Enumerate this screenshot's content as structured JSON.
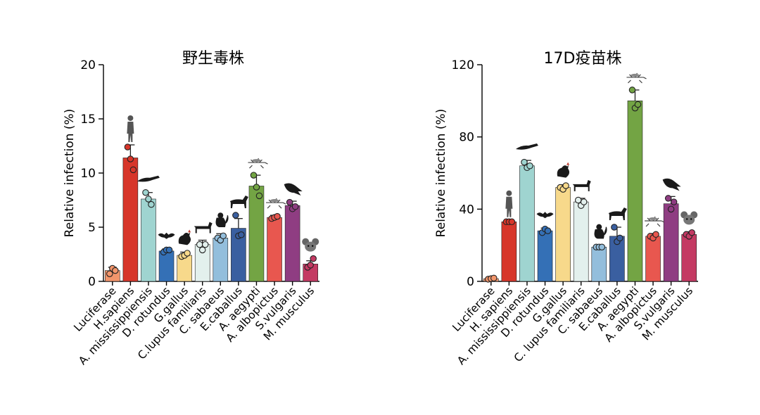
{
  "chart_data": [
    {
      "type": "bar",
      "title": "野生毒株",
      "ylabel": "Relative infection (%)",
      "ylim": [
        0,
        20
      ],
      "yticks": [
        0,
        5,
        10,
        15,
        20
      ],
      "categories": [
        "Luciferase",
        "H.sapiens",
        "A. mississippiensis",
        "D. rotundus",
        "G.gallus",
        "C.lupus familiaris",
        "C. sabaeus",
        "E.caballus",
        "A. aegypti",
        "A. albopictus",
        "S.vulgaris",
        "M. musculus"
      ],
      "values": [
        1.0,
        11.4,
        7.6,
        2.8,
        2.4,
        3.4,
        4.0,
        4.9,
        8.8,
        5.9,
        7.0,
        1.6
      ],
      "error": [
        0.3,
        1.2,
        0.6,
        0.2,
        0.3,
        0.4,
        0.4,
        0.9,
        1.0,
        0.2,
        0.4,
        0.3
      ],
      "points": [
        [
          0.7,
          1.2,
          1.0
        ],
        [
          12.4,
          11.3,
          10.3
        ],
        [
          8.2,
          7.6,
          7.1
        ],
        [
          2.7,
          2.9,
          2.9
        ],
        [
          2.3,
          2.4,
          2.6
        ],
        [
          3.4,
          2.9,
          3.4
        ],
        [
          4.0,
          3.8,
          4.2
        ],
        [
          6.1,
          4.2,
          4.3
        ],
        [
          9.8,
          8.7,
          7.9
        ],
        [
          5.8,
          5.9,
          6.0
        ],
        [
          7.3,
          6.7,
          6.9
        ],
        [
          1.3,
          1.5,
          2.1
        ]
      ],
      "colors": [
        "#f2956b",
        "#d7362a",
        "#9fd4d0",
        "#3470b6",
        "#f7d98b",
        "#e3f0ed",
        "#93bedc",
        "#3a5fa0",
        "#73a444",
        "#e8574f",
        "#8f3d82",
        "#c43a63"
      ],
      "icons": [
        "",
        "human-icon",
        "alligator-icon",
        "bat-icon",
        "chicken-icon",
        "dog-icon",
        "monkey-icon",
        "horse-icon",
        "mosquito-icon",
        "mosquito-icon",
        "starling-icon",
        "mouse-icon"
      ]
    },
    {
      "type": "bar",
      "title": "17D疫苗株",
      "ylabel": "Relative infection (%)",
      "ylim": [
        0,
        120
      ],
      "yticks": [
        0,
        40,
        80,
        120
      ],
      "categories": [
        "Luciferase",
        "H. sapiens",
        "A. mississippiensis",
        "D. rotundus",
        "G.gallus",
        "C. lupus familiaris",
        "C. sabaeus",
        "E.caballus",
        "A. aegypti",
        "A. albopictus",
        "S.vulgaris",
        "M. musculus"
      ],
      "values": [
        1.5,
        33,
        64,
        28,
        52,
        44,
        19,
        25,
        100,
        25,
        43,
        26
      ],
      "error": [
        0.5,
        1,
        3,
        1.5,
        1.5,
        2,
        1,
        5,
        6,
        1.5,
        4,
        1.5
      ],
      "points": [
        [
          1.2,
          1.5,
          1.8
        ],
        [
          33,
          33,
          33
        ],
        [
          66,
          63,
          64
        ],
        [
          27,
          29,
          28
        ],
        [
          52,
          51,
          53
        ],
        [
          45,
          42,
          44
        ],
        [
          19,
          19,
          19
        ],
        [
          30,
          22,
          24
        ],
        [
          106,
          96,
          98
        ],
        [
          25,
          24,
          26
        ],
        [
          46,
          40,
          44
        ],
        [
          26,
          25,
          27
        ]
      ],
      "colors": [
        "#f2956b",
        "#d7362a",
        "#9fd4d0",
        "#3470b6",
        "#f7d98b",
        "#e3f0ed",
        "#93bedc",
        "#3a5fa0",
        "#73a444",
        "#e8574f",
        "#8f3d82",
        "#c43a63"
      ],
      "icons": [
        "",
        "human-icon",
        "alligator-icon",
        "bat-icon",
        "chicken-icon",
        "dog-icon",
        "monkey-icon",
        "horse-icon",
        "mosquito-icon",
        "mosquito-icon",
        "starling-icon",
        "mouse-icon"
      ]
    }
  ]
}
